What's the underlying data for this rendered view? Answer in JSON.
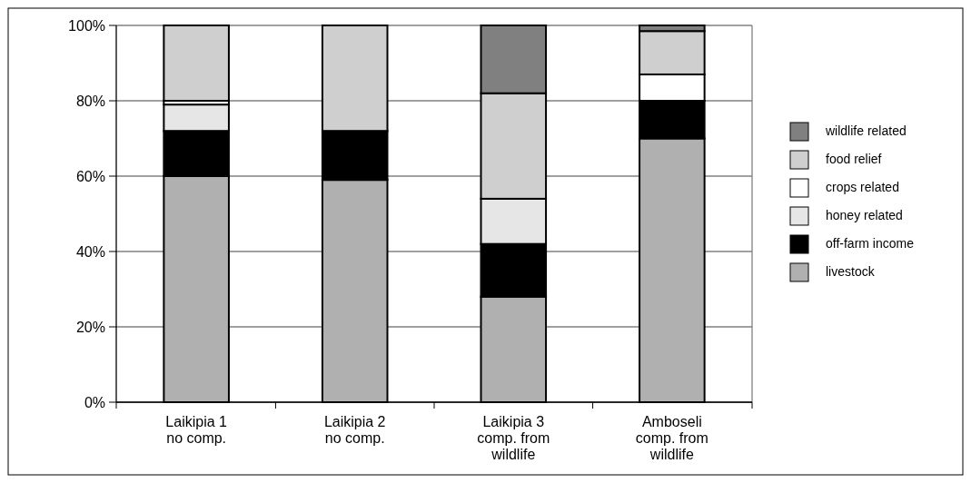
{
  "chart_data": {
    "type": "bar",
    "stacked": true,
    "categories": [
      "Laikipia 1\nno comp.",
      "Laikipia 2\nno comp.",
      "Laikipia 3\ncomp. from\nwildlife",
      "Amboseli\ncomp. from\nwildlife"
    ],
    "series": [
      {
        "name": "livestock",
        "color": "#b0b0b0",
        "values": [
          60,
          59,
          28,
          70
        ]
      },
      {
        "name": "off-farm income",
        "color": "#000000",
        "values": [
          12,
          13,
          14,
          10
        ]
      },
      {
        "name": "honey related",
        "color": "#e6e6e6",
        "values": [
          7,
          0,
          12,
          0
        ]
      },
      {
        "name": "crops related",
        "color": "#ffffff",
        "values": [
          1,
          0,
          0,
          7
        ]
      },
      {
        "name": "food relief",
        "color": "#cfcfcf",
        "values": [
          20,
          28,
          28,
          11.5
        ]
      },
      {
        "name": "wildlife related",
        "color": "#808080",
        "values": [
          0,
          0,
          18,
          1.5
        ]
      }
    ],
    "ylim": [
      0,
      100
    ],
    "yticks": [
      {
        "value": 0,
        "label": "0%"
      },
      {
        "value": 20,
        "label": "20%"
      },
      {
        "value": 40,
        "label": "40%"
      },
      {
        "value": 60,
        "label": "60%"
      },
      {
        "value": 80,
        "label": "80%"
      },
      {
        "value": 100,
        "label": "100%"
      }
    ],
    "grid": "y",
    "legend": "right"
  }
}
